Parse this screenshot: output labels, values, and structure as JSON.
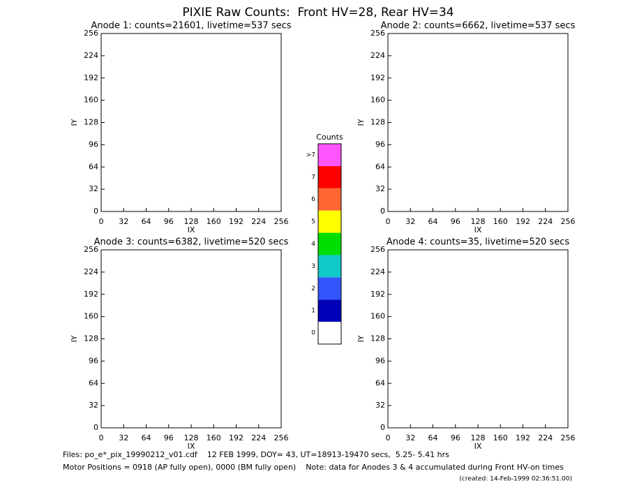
{
  "title": "PIXIE Raw Counts:  Front HV=28, Rear HV=34",
  "chart_data": [
    {
      "type": "heatmap",
      "title": "Anode 1: counts=21601, livetime=537 secs",
      "xlabel": "IX",
      "ylabel": "IY",
      "xlim": [
        0,
        256
      ],
      "ylim": [
        0,
        256
      ],
      "xticks": [
        0,
        32,
        64,
        96,
        128,
        160,
        192,
        224,
        256
      ],
      "yticks": [
        0,
        32,
        64,
        96,
        128,
        160,
        192,
        224,
        256
      ]
    },
    {
      "type": "heatmap",
      "title": "Anode 2: counts=6662, livetime=537 secs",
      "xlabel": "IX",
      "ylabel": "IY",
      "xlim": [
        0,
        256
      ],
      "ylim": [
        0,
        256
      ],
      "xticks": [
        0,
        32,
        64,
        96,
        128,
        160,
        192,
        224,
        256
      ],
      "yticks": [
        0,
        32,
        64,
        96,
        128,
        160,
        192,
        224,
        256
      ]
    },
    {
      "type": "heatmap",
      "title": "Anode 3: counts=6382, livetime=520 secs",
      "xlabel": "IX",
      "ylabel": "IY",
      "xlim": [
        0,
        256
      ],
      "ylim": [
        0,
        256
      ],
      "xticks": [
        0,
        32,
        64,
        96,
        128,
        160,
        192,
        224,
        256
      ],
      "yticks": [
        0,
        32,
        64,
        96,
        128,
        160,
        192,
        224,
        256
      ]
    },
    {
      "type": "heatmap",
      "title": "Anode 4: counts=35, livetime=520 secs",
      "xlabel": "IX",
      "ylabel": "IY",
      "xlim": [
        0,
        256
      ],
      "ylim": [
        0,
        256
      ],
      "xticks": [
        0,
        32,
        64,
        96,
        128,
        160,
        192,
        224,
        256
      ],
      "yticks": [
        0,
        32,
        64,
        96,
        128,
        160,
        192,
        224,
        256
      ]
    }
  ],
  "colorbar": {
    "title": "Counts",
    "labels": [
      "0",
      "1",
      "2",
      "3",
      "4",
      "5",
      "6",
      "7",
      ">7"
    ],
    "colors": [
      "#ffffff",
      "#0000b8",
      "#3355ff",
      "#11c8c8",
      "#00dd00",
      "#ffff00",
      "#ff6633",
      "#ff0000",
      "#ff55ff"
    ]
  },
  "footer": [
    "Files: po_e*_pix_19990212_v01.cdf    12 FEB 1999, DOY= 43, UT=18913-19470 secs,  5.25- 5.41 hrs",
    "Motor Positions = 0918 (AP fully open), 0000 (BM fully open)    Note: data for Anodes 3 & 4 accumulated during Front HV-on times",
    "(created: 14-Feb-1999 02:36:51.00)"
  ]
}
